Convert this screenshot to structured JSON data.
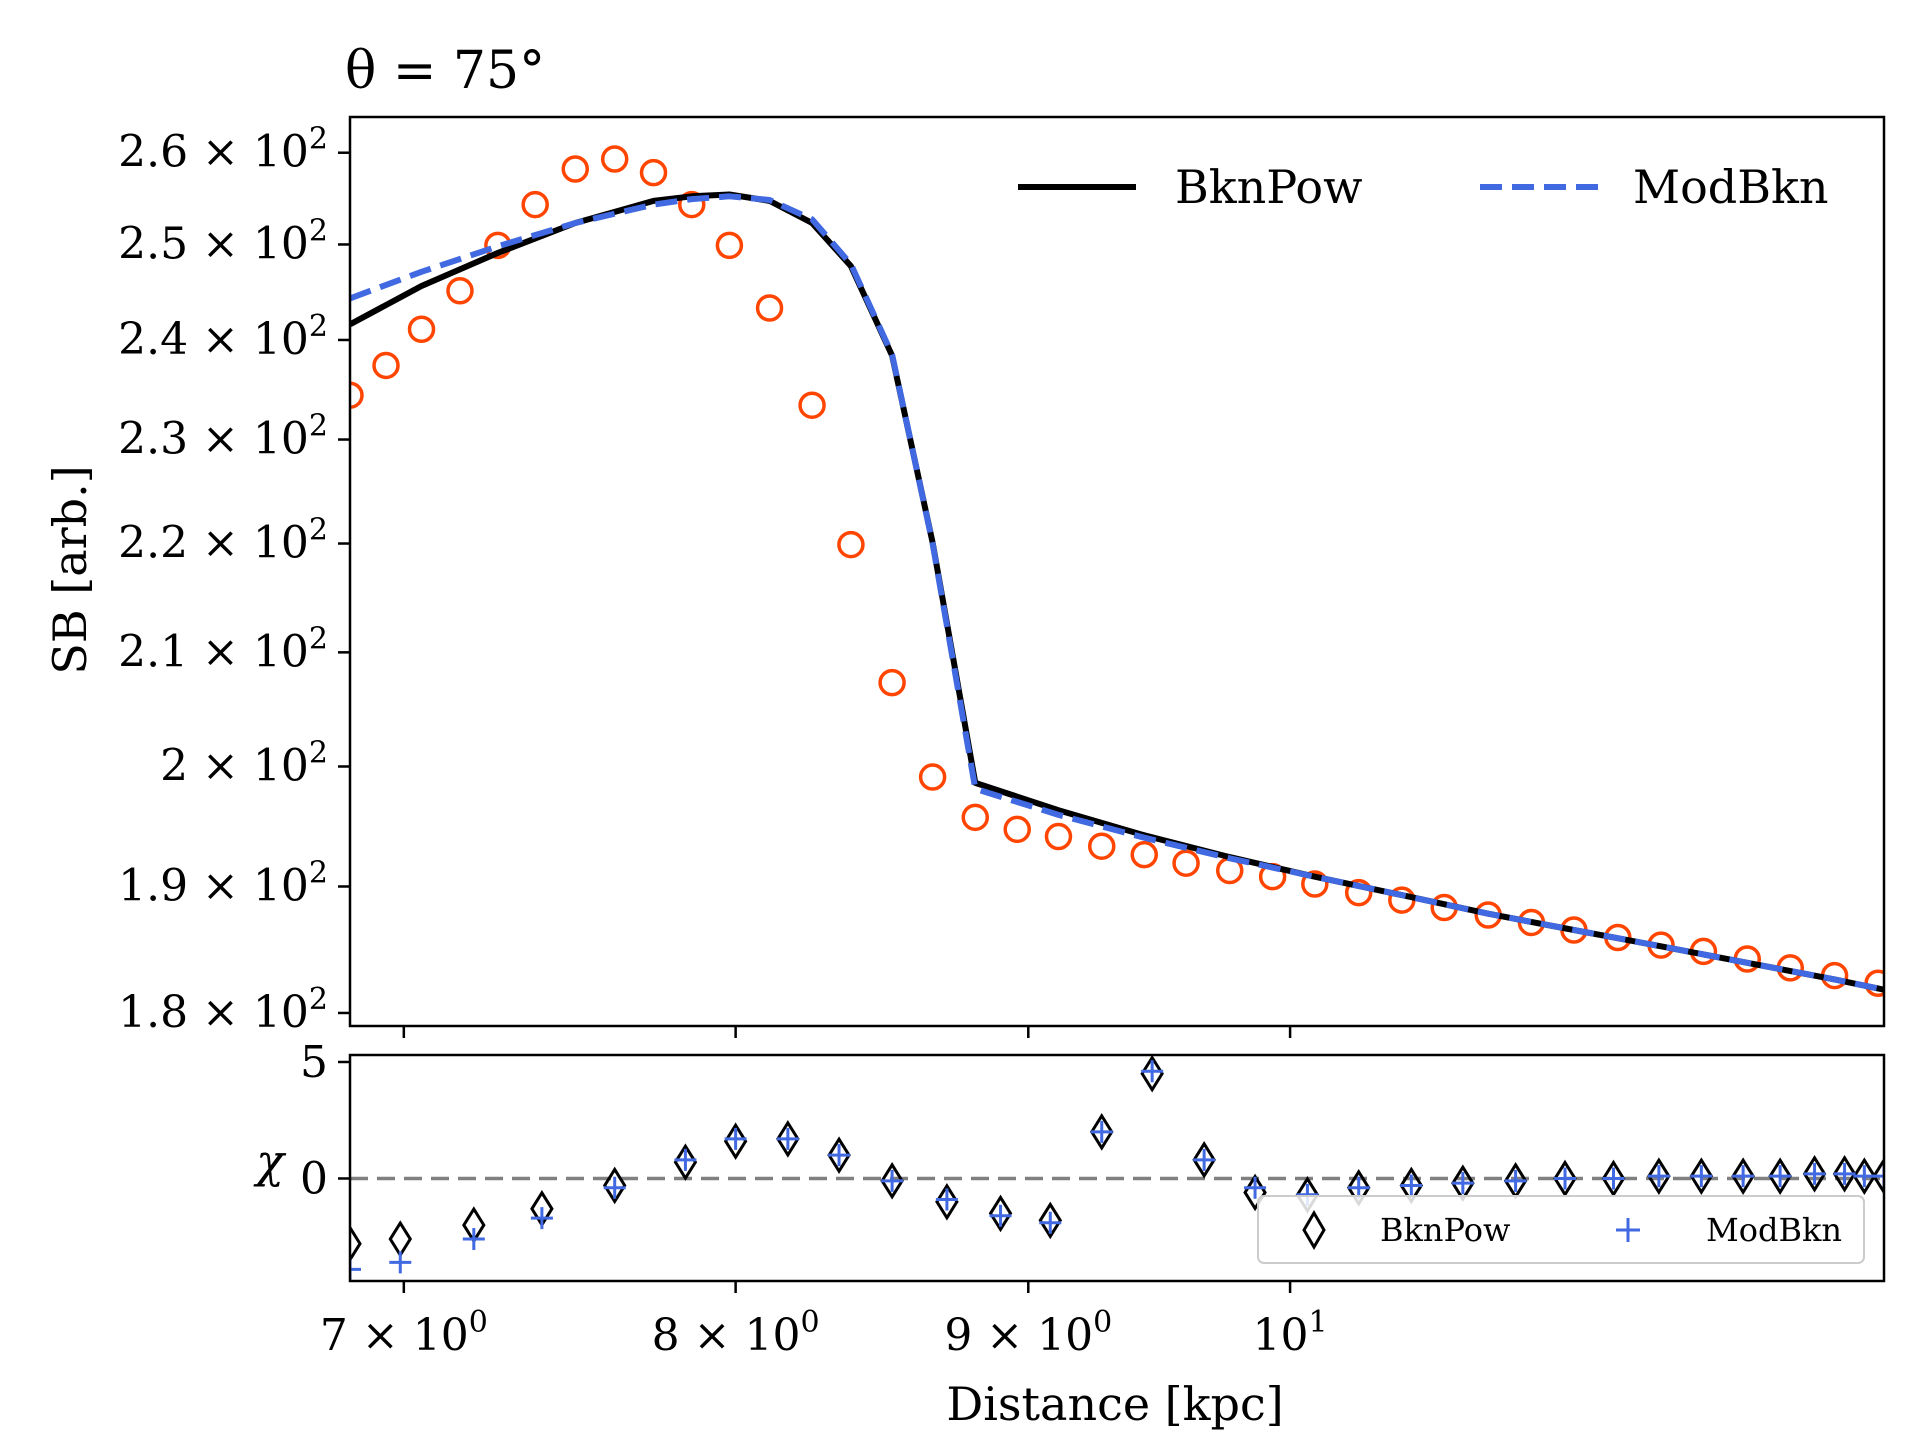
{
  "chart_data": {
    "type": "line",
    "title": "θ = 75°",
    "xlabel": "Distance [kpc]",
    "xscale": "log",
    "xlim": [
      6.85,
      12.7
    ],
    "x_tick_labels": [
      {
        "value": 7,
        "base": "7 × 10",
        "exp": "0"
      },
      {
        "value": 8,
        "base": "8 × 10",
        "exp": "0"
      },
      {
        "value": 9,
        "base": "9 × 10",
        "exp": "0"
      },
      {
        "value": 10,
        "base": "10",
        "exp": "1"
      }
    ],
    "main_panel": {
      "ylabel": "SB [arb.]",
      "yscale": "log",
      "ylim": [
        179,
        264
      ],
      "y_tick_labels": [
        {
          "value": 180,
          "base": "1.8 × 10",
          "exp": "2"
        },
        {
          "value": 190,
          "base": "1.9 × 10",
          "exp": "2"
        },
        {
          "value": 200,
          "base": "2 × 10",
          "exp": "2"
        },
        {
          "value": 210,
          "base": "2.1 × 10",
          "exp": "2"
        },
        {
          "value": 220,
          "base": "2.2 × 10",
          "exp": "2"
        },
        {
          "value": 230,
          "base": "2.3 × 10",
          "exp": "2"
        },
        {
          "value": 240,
          "base": "2.4 × 10",
          "exp": "2"
        },
        {
          "value": 250,
          "base": "2.5 × 10",
          "exp": "2"
        },
        {
          "value": 260,
          "base": "2.6 × 10",
          "exp": "2"
        }
      ],
      "data_points": {
        "x": [
          6.85,
          6.95,
          7.05,
          7.16,
          7.27,
          7.38,
          7.5,
          7.62,
          7.74,
          7.86,
          7.98,
          8.11,
          8.25,
          8.38,
          8.52,
          8.66,
          8.81,
          8.96,
          9.11,
          9.27,
          9.43,
          9.59,
          9.76,
          9.93,
          10.1,
          10.28,
          10.46,
          10.64,
          10.83,
          11.02,
          11.21,
          11.41,
          11.61,
          11.81,
          12.02,
          12.23,
          12.45,
          12.67
        ],
        "y": [
          234.4,
          237.4,
          241.1,
          245.1,
          249.9,
          254.3,
          258.2,
          259.3,
          257.8,
          254.3,
          249.9,
          243.3,
          233.4,
          219.9,
          207.3,
          199.1,
          195.7,
          194.7,
          194.1,
          193.3,
          192.6,
          191.9,
          191.3,
          190.8,
          190.2,
          189.5,
          188.9,
          188.3,
          187.7,
          187.1,
          186.5,
          185.9,
          185.3,
          184.8,
          184.2,
          183.5,
          182.9,
          182.3
        ]
      },
      "series": [
        {
          "name": "BknPow",
          "style": "solid",
          "color": "#000000",
          "x": [
            6.85,
            7.05,
            7.27,
            7.5,
            7.74,
            7.86,
            7.98,
            8.11,
            8.25,
            8.38,
            8.52,
            8.66,
            8.81,
            9.11,
            9.43,
            9.76,
            10.1,
            10.46,
            10.83,
            11.21,
            11.61,
            12.02,
            12.45,
            12.7
          ],
          "y": [
            241.6,
            245.6,
            249.1,
            252.3,
            254.7,
            255.2,
            255.4,
            254.7,
            252.3,
            247.7,
            238.4,
            220.1,
            198.6,
            196.3,
            194.2,
            192.4,
            190.8,
            189.3,
            187.8,
            186.5,
            185.2,
            183.9,
            182.6,
            181.8
          ]
        },
        {
          "name": "ModBkn",
          "style": "dashed",
          "color": "#4169e1",
          "x": [
            6.85,
            7.05,
            7.27,
            7.5,
            7.74,
            7.86,
            7.98,
            8.11,
            8.25,
            8.38,
            8.52,
            8.66,
            8.81,
            9.11,
            9.43,
            9.76,
            10.1,
            10.46,
            10.83,
            11.21,
            11.61,
            12.02,
            12.45,
            12.7
          ],
          "y": [
            244.3,
            247.1,
            249.8,
            252.3,
            254.3,
            254.9,
            255.2,
            254.8,
            252.7,
            247.9,
            238.5,
            220.0,
            198.1,
            195.9,
            194.0,
            192.3,
            190.8,
            189.3,
            187.8,
            186.5,
            185.2,
            183.9,
            182.6,
            181.8
          ]
        }
      ],
      "legend": [
        "BknPow",
        "ModBkn"
      ]
    },
    "residual_panel": {
      "ylabel": "χ",
      "ylim": [
        -4.4,
        5.3
      ],
      "y_tick_labels": [
        {
          "value": 0,
          "label": "0"
        },
        {
          "value": 5,
          "label": "5"
        }
      ],
      "series": [
        {
          "name": "BknPow",
          "marker": "diamond",
          "color": "#000000",
          "x": [
            6.85,
            6.99,
            7.2,
            7.4,
            7.62,
            7.84,
            8.0,
            8.17,
            8.34,
            8.52,
            8.71,
            8.9,
            9.08,
            9.27,
            9.46,
            9.66,
            9.86,
            10.07,
            10.28,
            10.5,
            10.72,
            10.95,
            11.17,
            11.39,
            11.6,
            11.8,
            12.0,
            12.18,
            12.35,
            12.5,
            12.6,
            12.7
          ],
          "y": [
            -2.8,
            -2.6,
            -2.0,
            -1.3,
            -0.3,
            0.7,
            1.6,
            1.7,
            1.0,
            -0.1,
            -1.0,
            -1.5,
            -1.8,
            2.0,
            4.5,
            0.8,
            -0.6,
            -0.7,
            -0.4,
            -0.3,
            -0.2,
            -0.1,
            0.0,
            0.0,
            0.1,
            0.1,
            0.1,
            0.1,
            0.2,
            0.2,
            0.1,
            0.1
          ]
        },
        {
          "name": "ModBkn",
          "marker": "plus",
          "color": "#4169e1",
          "x": [
            6.85,
            6.99,
            7.2,
            7.4,
            7.62,
            7.84,
            8.0,
            8.17,
            8.34,
            8.52,
            8.71,
            8.9,
            9.08,
            9.27,
            9.46,
            9.66,
            9.86,
            10.07,
            10.28,
            10.5,
            10.72,
            10.95,
            11.17,
            11.39,
            11.6,
            11.8,
            12.0,
            12.18,
            12.35,
            12.5,
            12.6,
            12.7
          ],
          "y": [
            -3.9,
            -3.6,
            -2.6,
            -1.7,
            -0.4,
            0.8,
            1.7,
            1.7,
            1.0,
            -0.1,
            -0.9,
            -1.6,
            -1.9,
            2.0,
            4.6,
            0.8,
            -0.4,
            -0.7,
            -0.4,
            -0.3,
            -0.2,
            -0.1,
            0.0,
            0.0,
            0.1,
            0.1,
            0.1,
            0.1,
            0.2,
            0.2,
            0.1,
            0.1
          ]
        }
      ],
      "legend": [
        "BknPow",
        "ModBkn"
      ]
    }
  }
}
